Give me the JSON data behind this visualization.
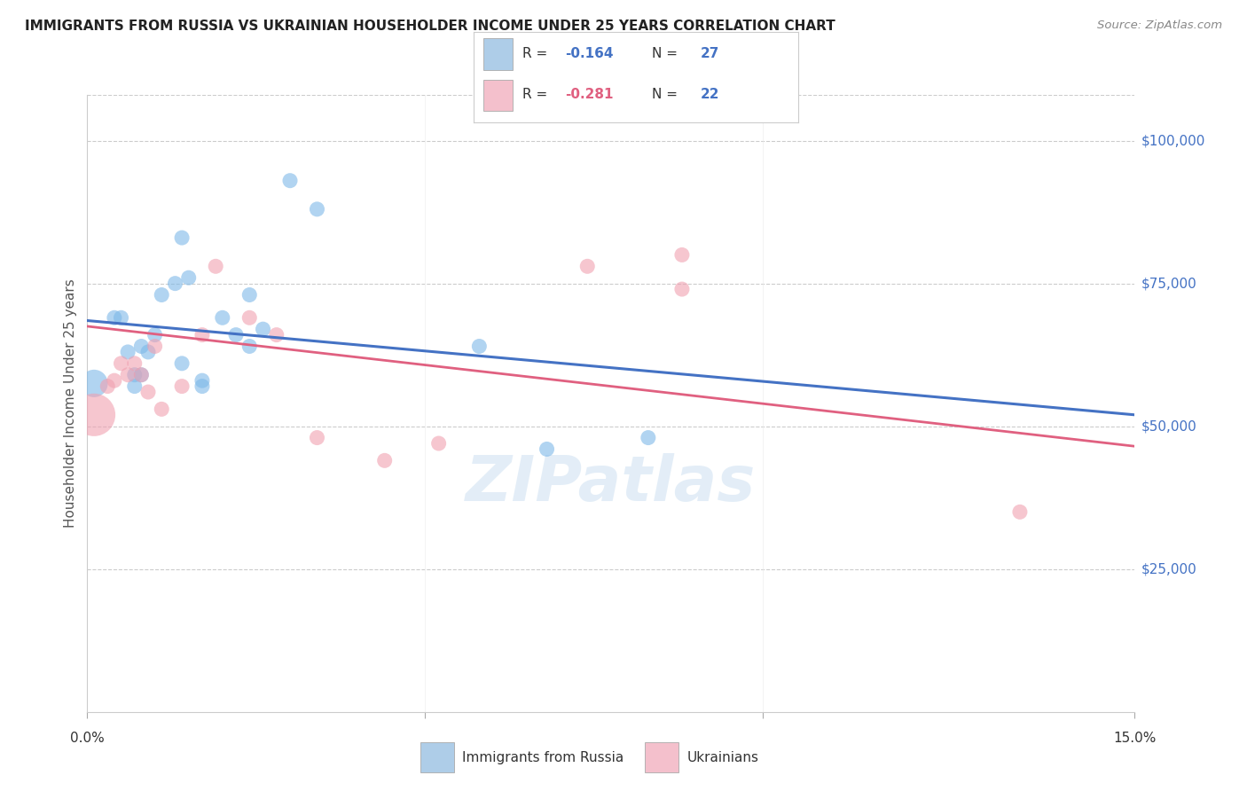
{
  "title": "IMMIGRANTS FROM RUSSIA VS UKRAINIAN HOUSEHOLDER INCOME UNDER 25 YEARS CORRELATION CHART",
  "source": "Source: ZipAtlas.com",
  "ylabel": "Householder Income Under 25 years",
  "right_ytick_labels": [
    "$100,000",
    "$75,000",
    "$50,000",
    "$25,000"
  ],
  "right_ytick_values": [
    100000,
    75000,
    50000,
    25000
  ],
  "ylim": [
    0,
    108000
  ],
  "xlim": [
    0.0,
    0.155
  ],
  "watermark": "ZIPatlas",
  "russia_points": [
    [
      0.001,
      57500
    ],
    [
      0.004,
      69000
    ],
    [
      0.005,
      69000
    ],
    [
      0.006,
      63000
    ],
    [
      0.007,
      59000
    ],
    [
      0.007,
      57000
    ],
    [
      0.008,
      59000
    ],
    [
      0.008,
      64000
    ],
    [
      0.009,
      63000
    ],
    [
      0.01,
      66000
    ],
    [
      0.011,
      73000
    ],
    [
      0.013,
      75000
    ],
    [
      0.014,
      83000
    ],
    [
      0.014,
      61000
    ],
    [
      0.015,
      76000
    ],
    [
      0.017,
      58000
    ],
    [
      0.017,
      57000
    ],
    [
      0.02,
      69000
    ],
    [
      0.022,
      66000
    ],
    [
      0.024,
      73000
    ],
    [
      0.024,
      64000
    ],
    [
      0.026,
      67000
    ],
    [
      0.03,
      93000
    ],
    [
      0.034,
      88000
    ],
    [
      0.058,
      64000
    ],
    [
      0.068,
      46000
    ],
    [
      0.083,
      48000
    ]
  ],
  "ukraine_points": [
    [
      0.001,
      52000
    ],
    [
      0.003,
      57000
    ],
    [
      0.004,
      58000
    ],
    [
      0.005,
      61000
    ],
    [
      0.006,
      59000
    ],
    [
      0.007,
      61000
    ],
    [
      0.008,
      59000
    ],
    [
      0.009,
      56000
    ],
    [
      0.01,
      64000
    ],
    [
      0.011,
      53000
    ],
    [
      0.014,
      57000
    ],
    [
      0.017,
      66000
    ],
    [
      0.019,
      78000
    ],
    [
      0.024,
      69000
    ],
    [
      0.028,
      66000
    ],
    [
      0.034,
      48000
    ],
    [
      0.044,
      44000
    ],
    [
      0.052,
      47000
    ],
    [
      0.074,
      78000
    ],
    [
      0.088,
      80000
    ],
    [
      0.088,
      74000
    ],
    [
      0.138,
      35000
    ]
  ],
  "russia_sizes": [
    500,
    150,
    150,
    150,
    150,
    150,
    150,
    150,
    150,
    150,
    150,
    150,
    150,
    150,
    150,
    150,
    150,
    150,
    150,
    150,
    150,
    150,
    150,
    150,
    150,
    150,
    150
  ],
  "ukraine_sizes": [
    1200,
    150,
    150,
    150,
    150,
    150,
    150,
    150,
    150,
    150,
    150,
    150,
    150,
    150,
    150,
    150,
    150,
    150,
    150,
    150,
    150,
    150
  ],
  "russia_line": {
    "x0": 0.0,
    "y0": 68500,
    "x1": 0.155,
    "y1": 52000
  },
  "ukraine_line": {
    "x0": 0.0,
    "y0": 67500,
    "x1": 0.155,
    "y1": 46500
  },
  "blue_color": "#7db8e8",
  "pink_color": "#f0a0b0",
  "blue_light": "#aecde8",
  "pink_light": "#f4c0cc",
  "blue_line_color": "#4472c4",
  "pink_line_color": "#e06080",
  "background_color": "#ffffff",
  "grid_color": "#cccccc",
  "right_label_color": "#4472c4",
  "title_color": "#222222",
  "source_color": "#888888"
}
